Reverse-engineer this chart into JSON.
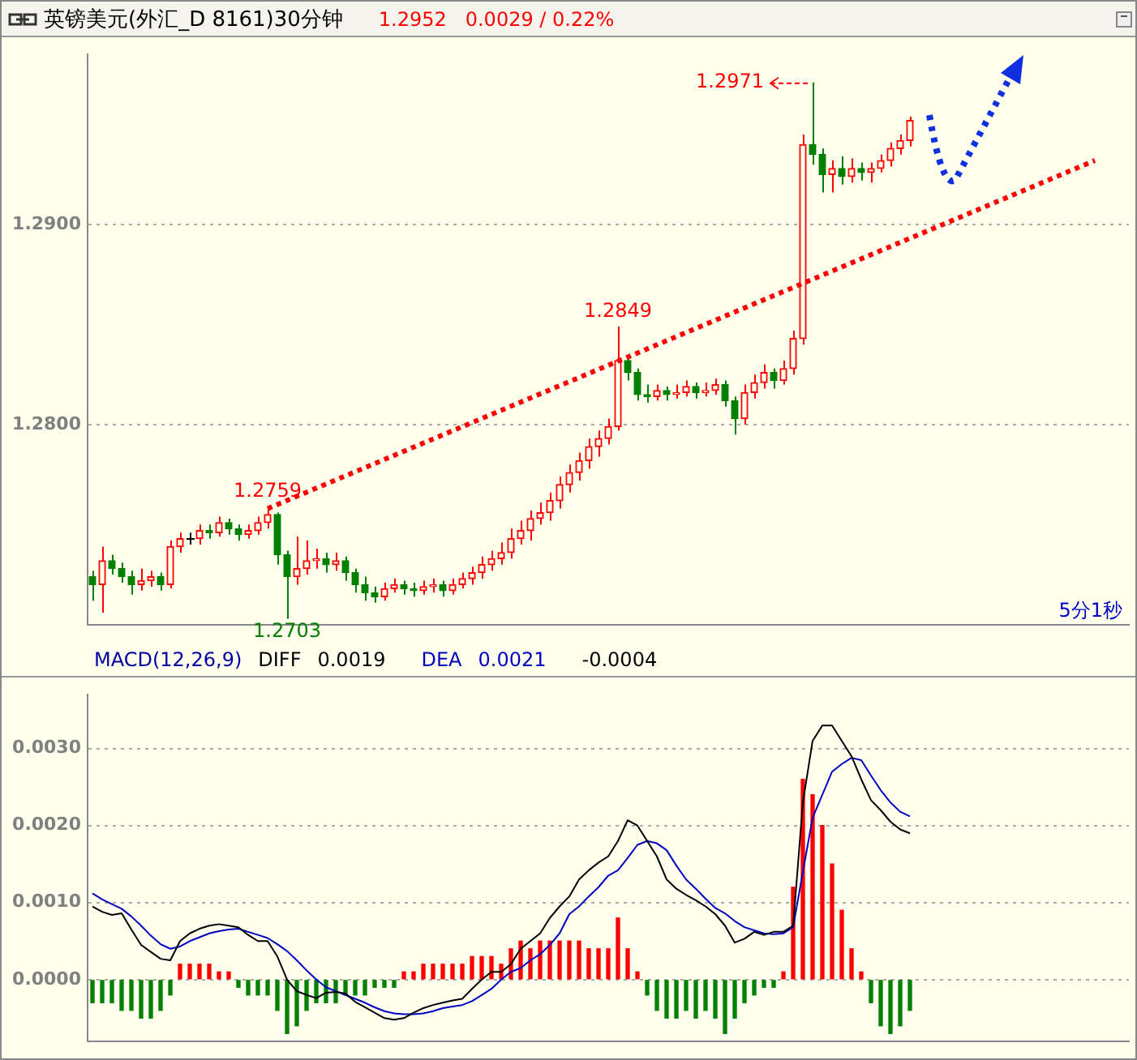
{
  "chart_data": [
    {
      "type": "candlestick",
      "title": "英镑美元(外汇_D 8161)30分钟",
      "subtitle": "1.2952   0.0029 / 0.22%",
      "categories": [
        null,
        null,
        null,
        null,
        null,
        null,
        null,
        null,
        null,
        null,
        null,
        null,
        null,
        null,
        null,
        null,
        null,
        null,
        null,
        null,
        null,
        null,
        null,
        null,
        null,
        null,
        null,
        null,
        null,
        null,
        null,
        null,
        null,
        null,
        null,
        null,
        null,
        null,
        null,
        null,
        null,
        null,
        null,
        null,
        null,
        null,
        null,
        null,
        null,
        null,
        null,
        null,
        null,
        null,
        null,
        null,
        null,
        null,
        null,
        null,
        null,
        null,
        null,
        null,
        null,
        null,
        null,
        null,
        null,
        null,
        null,
        null,
        null,
        null,
        null,
        null,
        null,
        null,
        null,
        null,
        null,
        null,
        null,
        null,
        null,
        null,
        null,
        null,
        null,
        null,
        null,
        null,
        null,
        null,
        null,
        null,
        null,
        null,
        null,
        null,
        null,
        null,
        null,
        null,
        null,
        null,
        null
      ],
      "ohlc": [
        [
          1.2724,
          1.2727,
          1.2712,
          1.272
        ],
        [
          1.272,
          1.2739,
          1.2706,
          1.2732
        ],
        [
          1.2732,
          1.2735,
          1.2725,
          1.2728
        ],
        [
          1.2728,
          1.2731,
          1.2721,
          1.2724
        ],
        [
          1.2724,
          1.2727,
          1.2715,
          1.272
        ],
        [
          1.272,
          1.2728,
          1.2717,
          1.2722
        ],
        [
          1.2722,
          1.2727,
          1.2719,
          1.2724
        ],
        [
          1.2724,
          1.2726,
          1.2717,
          1.272
        ],
        [
          1.272,
          1.2742,
          1.2718,
          1.2739
        ],
        [
          1.2739,
          1.2746,
          1.2736,
          1.2743
        ],
        [
          1.2743,
          1.2746,
          1.274,
          1.2743
        ],
        [
          1.2743,
          1.275,
          1.274,
          1.2747
        ],
        [
          1.2747,
          1.275,
          1.2743,
          1.2746
        ],
        [
          1.2746,
          1.2754,
          1.2744,
          1.2751
        ],
        [
          1.2751,
          1.2753,
          1.2745,
          1.2748
        ],
        [
          1.2748,
          1.275,
          1.2742,
          1.2745
        ],
        [
          1.2745,
          1.275,
          1.2743,
          1.2747
        ],
        [
          1.2747,
          1.2754,
          1.2745,
          1.2751
        ],
        [
          1.2751,
          1.2759,
          1.2748,
          1.2755
        ],
        [
          1.2755,
          1.2756,
          1.273,
          1.2735
        ],
        [
          1.2735,
          1.2737,
          1.2703,
          1.2724
        ],
        [
          1.2724,
          1.2744,
          1.272,
          1.2728
        ],
        [
          1.2728,
          1.2742,
          1.2725,
          1.2732
        ],
        [
          1.2732,
          1.2738,
          1.2728,
          1.2733
        ],
        [
          1.2733,
          1.2736,
          1.2726,
          1.273
        ],
        [
          1.273,
          1.2736,
          1.2727,
          1.2732
        ],
        [
          1.2732,
          1.2734,
          1.2722,
          1.2726
        ],
        [
          1.2726,
          1.2728,
          1.2716,
          1.272
        ],
        [
          1.272,
          1.2724,
          1.2712,
          1.2716
        ],
        [
          1.2716,
          1.2719,
          1.2711,
          1.2714
        ],
        [
          1.2714,
          1.2721,
          1.2712,
          1.2718
        ],
        [
          1.2718,
          1.2723,
          1.2716,
          1.272
        ],
        [
          1.272,
          1.2722,
          1.2715,
          1.2718
        ],
        [
          1.2718,
          1.2721,
          1.2714,
          1.2717
        ],
        [
          1.2717,
          1.2722,
          1.2715,
          1.2719
        ],
        [
          1.2719,
          1.2723,
          1.2716,
          1.272
        ],
        [
          1.272,
          1.2722,
          1.2714,
          1.2717
        ],
        [
          1.2717,
          1.2723,
          1.2715,
          1.272
        ],
        [
          1.272,
          1.2726,
          1.2718,
          1.2723
        ],
        [
          1.2723,
          1.2729,
          1.272,
          1.2726
        ],
        [
          1.2726,
          1.2734,
          1.2723,
          1.273
        ],
        [
          1.273,
          1.2737,
          1.2727,
          1.2733
        ],
        [
          1.2733,
          1.2741,
          1.273,
          1.2736
        ],
        [
          1.2736,
          1.2748,
          1.2733,
          1.2743
        ],
        [
          1.2743,
          1.2752,
          1.274,
          1.2747
        ],
        [
          1.2747,
          1.2757,
          1.2742,
          1.2753
        ],
        [
          1.2753,
          1.2761,
          1.275,
          1.2756
        ],
        [
          1.2756,
          1.2766,
          1.2752,
          1.2762
        ],
        [
          1.2762,
          1.2774,
          1.2758,
          1.277
        ],
        [
          1.277,
          1.278,
          1.2766,
          1.2776
        ],
        [
          1.2776,
          1.2786,
          1.2772,
          1.2782
        ],
        [
          1.2782,
          1.2793,
          1.2778,
          1.2789
        ],
        [
          1.2789,
          1.2797,
          1.2784,
          1.2793
        ],
        [
          1.2793,
          1.2803,
          1.279,
          1.2799
        ],
        [
          1.2799,
          1.2849,
          1.2797,
          1.2832
        ],
        [
          1.2832,
          1.2834,
          1.2822,
          1.2826
        ],
        [
          1.2826,
          1.2828,
          1.2812,
          1.2815
        ],
        [
          1.2815,
          1.282,
          1.2811,
          1.2814
        ],
        [
          1.2814,
          1.282,
          1.2812,
          1.2817
        ],
        [
          1.2817,
          1.2819,
          1.2812,
          1.2815
        ],
        [
          1.2815,
          1.282,
          1.2813,
          1.2816
        ],
        [
          1.2816,
          1.2822,
          1.2814,
          1.2819
        ],
        [
          1.2819,
          1.2821,
          1.2813,
          1.2816
        ],
        [
          1.2816,
          1.2821,
          1.2814,
          1.2817
        ],
        [
          1.2817,
          1.2823,
          1.2815,
          1.282
        ],
        [
          1.282,
          1.2822,
          1.2809,
          1.2812
        ],
        [
          1.2812,
          1.2814,
          1.2795,
          1.2803
        ],
        [
          1.2803,
          1.282,
          1.28,
          1.2816
        ],
        [
          1.2816,
          1.2825,
          1.2813,
          1.2821
        ],
        [
          1.2821,
          1.283,
          1.2818,
          1.2826
        ],
        [
          1.2826,
          1.2828,
          1.2818,
          1.2822
        ],
        [
          1.2822,
          1.2832,
          1.282,
          1.2828
        ],
        [
          1.2828,
          1.2847,
          1.2825,
          1.2843
        ],
        [
          1.2843,
          1.2945,
          1.284,
          1.294
        ],
        [
          1.294,
          1.2971,
          1.293,
          1.2935
        ],
        [
          1.2935,
          1.2938,
          1.2916,
          1.2925
        ],
        [
          1.2925,
          1.2932,
          1.2916,
          1.2928
        ],
        [
          1.2928,
          1.2934,
          1.292,
          1.2924
        ],
        [
          1.2924,
          1.2933,
          1.2921,
          1.2928
        ],
        [
          1.2928,
          1.2931,
          1.2922,
          1.2926
        ],
        [
          1.2926,
          1.2931,
          1.2921,
          1.2928
        ],
        [
          1.2928,
          1.2935,
          1.2926,
          1.2932
        ],
        [
          1.2932,
          1.2941,
          1.2929,
          1.2938
        ],
        [
          1.2938,
          1.2945,
          1.2935,
          1.2942
        ],
        [
          1.2942,
          1.2954,
          1.2939,
          1.2952
        ],
        null,
        null,
        null,
        null,
        null,
        null,
        null,
        null,
        null,
        null,
        null,
        null,
        null,
        null,
        null,
        null,
        null,
        null,
        null,
        null,
        null,
        null
      ],
      "colors": [
        "#008000",
        "#ff0000",
        "#008000",
        "#008000",
        "#008000",
        "#ff0000",
        "#ff0000",
        "#008000",
        "#ff0000",
        "#ff0000",
        "#000000",
        "#ff0000",
        "#008000",
        "#ff0000",
        "#008000",
        "#008000",
        "#ff0000",
        "#ff0000",
        "#ff0000",
        "#008000",
        "#008000",
        "#ff0000",
        "#ff0000",
        "#ff0000",
        "#008000",
        "#ff0000",
        "#008000",
        "#008000",
        "#008000",
        "#008000",
        "#ff0000",
        "#ff0000",
        "#008000",
        "#008000",
        "#ff0000",
        "#ff0000",
        "#008000",
        "#ff0000",
        "#ff0000",
        "#ff0000",
        "#ff0000",
        "#ff0000",
        "#ff0000",
        "#ff0000",
        "#ff0000",
        "#ff0000",
        "#ff0000",
        "#ff0000",
        "#ff0000",
        "#ff0000",
        "#ff0000",
        "#ff0000",
        "#ff0000",
        "#ff0000",
        "#ff0000",
        "#008000",
        "#008000",
        "#008000",
        "#ff0000",
        "#008000",
        "#ff0000",
        "#ff0000",
        "#008000",
        "#ff0000",
        "#ff0000",
        "#008000",
        "#008000",
        "#ff0000",
        "#ff0000",
        "#ff0000",
        "#008000",
        "#ff0000",
        "#ff0000",
        "#ff0000",
        "#008000",
        "#008000",
        "#ff0000",
        "#008000",
        "#ff0000",
        "#008000",
        "#ff0000",
        "#ff0000",
        "#ff0000",
        "#ff0000",
        "#ff0000",
        null,
        null,
        null,
        null,
        null,
        null,
        null,
        null,
        null,
        null,
        null,
        null,
        null,
        null,
        null,
        null,
        null,
        null,
        null,
        null,
        null,
        null
      ],
      "series": [
        {
          "type": "line",
          "values": [
            null,
            null,
            null,
            null,
            null,
            null,
            null,
            null,
            null,
            null,
            null,
            null,
            null,
            null,
            null,
            null,
            null,
            null,
            1.2758,
            null,
            null,
            null,
            null,
            null,
            null,
            null,
            null,
            null,
            null,
            null,
            null,
            null,
            null,
            null,
            null,
            null,
            null,
            null,
            null,
            null,
            null,
            null,
            null,
            null,
            null,
            null,
            null,
            null,
            null,
            null,
            null,
            null,
            null,
            null,
            null,
            null,
            null,
            null,
            null,
            null,
            null,
            null,
            null,
            null,
            null,
            null,
            null,
            null,
            null,
            null,
            null,
            null,
            null,
            null,
            null,
            null,
            null,
            null,
            null,
            null,
            null,
            null,
            null,
            null,
            null,
            null,
            null,
            null,
            null,
            null,
            null,
            null,
            null,
            null,
            null,
            null,
            null,
            null,
            null,
            null,
            null,
            null,
            null,
            1.2932,
            null,
            null,
            null
          ],
          "color": "#ff0000",
          "line_style": "dotted"
        }
      ],
      "ylim": [
        1.27,
        1.2985
      ],
      "yticks": [
        {
          "value": 1.28,
          "label": "1.2800"
        },
        {
          "value": 1.29,
          "label": "1.2900"
        }
      ],
      "grid": "y",
      "tick_labels": "y",
      "marker": "none",
      "annotations": [
        "1.2971",
        {
          "text": "1.2849",
          "y": 1.2849
        },
        {
          "text": "1.2759",
          "y": 1.2759
        },
        {
          "text": "1.2703",
          "y": 1.2703
        },
        "5分1秒"
      ]
    },
    {
      "type": "line",
      "title": "MACD(12,26,9)",
      "categories": [
        null,
        null,
        null,
        null,
        null,
        null,
        null,
        null,
        null,
        null,
        null,
        null,
        null,
        null,
        null,
        null,
        null,
        null,
        null,
        null,
        null,
        null,
        null,
        null,
        null,
        null,
        null,
        null,
        null,
        null,
        null,
        null,
        null,
        null,
        null,
        null,
        null,
        null,
        null,
        null,
        null,
        null,
        null,
        null,
        null,
        null,
        null,
        null,
        null,
        null,
        null,
        null,
        null,
        null,
        null,
        null,
        null,
        null,
        null,
        null,
        null,
        null,
        null,
        null,
        null,
        null,
        null,
        null,
        null,
        null,
        null,
        null,
        null,
        null,
        null,
        null,
        null,
        null,
        null,
        null,
        null,
        null,
        null,
        null,
        null,
        null,
        null,
        null,
        null,
        null,
        null,
        null,
        null,
        null,
        null,
        null,
        null,
        null,
        null,
        null,
        null,
        null,
        null,
        null,
        null,
        null,
        null
      ],
      "series": [
        {
          "name": "DIFF",
          "color": "#000000",
          "values": [
            0.00095,
            0.00088,
            0.00084,
            0.00086,
            0.00065,
            0.00045,
            0.00036,
            0.00027,
            0.00025,
            0.0005,
            0.0006,
            0.00066,
            0.0007,
            0.00072,
            0.0007,
            0.00068,
            0.00058,
            0.0005,
            0.0005,
            0.0003,
            0.0,
            -0.00015,
            -0.0002,
            -0.00024,
            -0.00017,
            -0.00016,
            -0.00018,
            -0.00029,
            -0.00036,
            -0.00043,
            -0.0005,
            -0.00052,
            -0.0005,
            -0.00043,
            -0.00037,
            -0.00033,
            -0.0003,
            -0.00027,
            -0.00025,
            -0.00012,
            0.0,
            0.0001,
            0.0001,
            0.0002,
            0.0004,
            0.0005,
            0.0006,
            0.0008,
            0.00095,
            0.00108,
            0.0013,
            0.00142,
            0.00152,
            0.0016,
            0.0018,
            0.00207,
            0.002,
            0.0018,
            0.0016,
            0.0013,
            0.00118,
            0.0011,
            0.00103,
            0.00095,
            0.00085,
            0.0007,
            0.00048,
            0.00053,
            0.00062,
            0.00058,
            0.00062,
            0.00062,
            0.0007,
            0.0023,
            0.0031,
            0.0033,
            0.0033,
            0.0031,
            0.0029,
            0.0026,
            0.00233,
            0.0022,
            0.00205,
            0.00195,
            0.0019,
            null,
            null,
            null,
            null,
            null,
            null,
            null,
            null,
            null,
            null,
            null,
            null,
            null,
            null,
            null,
            null,
            null,
            null,
            null,
            null,
            null,
            null
          ]
        },
        {
          "name": "DEA",
          "color": "#0000c0",
          "values": [
            0.00112,
            0.00104,
            0.00098,
            0.00092,
            0.00082,
            0.0007,
            0.00057,
            0.00046,
            0.0004,
            0.00043,
            0.0005,
            0.00055,
            0.0006,
            0.00063,
            0.00065,
            0.00066,
            0.00062,
            0.00058,
            0.00054,
            0.00046,
            0.00037,
            0.00025,
            0.00012,
            0.0,
            -0.0001,
            -0.00015,
            -0.0002,
            -0.00025,
            -0.0003,
            -0.00036,
            -0.00041,
            -0.00044,
            -0.00045,
            -0.00045,
            -0.00044,
            -0.00041,
            -0.00037,
            -0.00035,
            -0.00033,
            -0.00028,
            -0.0002,
            -0.00012,
            0.0,
            0.0001,
            0.00015,
            0.00025,
            0.00033,
            0.00045,
            0.0006,
            0.00085,
            0.00095,
            0.00108,
            0.0012,
            0.00135,
            0.00142,
            0.00158,
            0.00175,
            0.0018,
            0.00177,
            0.00168,
            0.00148,
            0.0013,
            0.00118,
            0.00105,
            0.00093,
            0.00086,
            0.00076,
            0.00068,
            0.00064,
            0.0006,
            0.00059,
            0.0006,
            0.00068,
            0.0014,
            0.0021,
            0.0024,
            0.0027,
            0.0028,
            0.00288,
            0.00285,
            0.00265,
            0.00246,
            0.0023,
            0.00218,
            0.00212,
            null,
            null,
            null,
            null,
            null,
            null,
            null,
            null,
            null,
            null,
            null,
            null,
            null,
            null,
            null,
            null,
            null,
            null,
            null,
            null,
            null,
            null
          ]
        },
        {
          "type": "bar",
          "values": [
            -0.0003,
            -0.0003,
            -0.0003,
            -0.0004,
            -0.0004,
            -0.0005,
            -0.0005,
            -0.0004,
            -0.0002,
            0.0002,
            0.0002,
            0.0002,
            0.0002,
            0.0001,
            0.0001,
            -0.0001,
            -0.0002,
            -0.0002,
            -0.0002,
            -0.0004,
            -0.0007,
            -0.0006,
            -0.0004,
            -0.0003,
            -0.0003,
            -0.0003,
            -0.0002,
            -0.0002,
            -0.0002,
            -0.0001,
            -0.0001,
            -0.0001,
            0.0001,
            0.0001,
            0.0002,
            0.0002,
            0.0002,
            0.0002,
            0.0002,
            0.0003,
            0.0003,
            0.0003,
            0.0002,
            0.0004,
            0.0005,
            0.0004,
            0.0005,
            0.0005,
            0.0005,
            0.0005,
            0.0005,
            0.0004,
            0.0004,
            0.0004,
            0.0008,
            0.0004,
            0.0001,
            -0.0002,
            -0.0004,
            -0.0005,
            -0.0005,
            -0.0004,
            -0.0005,
            -0.0004,
            -0.0005,
            -0.0007,
            -0.0005,
            -0.0003,
            -0.0002,
            -0.0001,
            -0.0001,
            0.0001,
            0.0012,
            0.0026,
            0.0024,
            0.002,
            0.0015,
            0.0009,
            0.0004,
            0.0001,
            -0.0003,
            -0.0006,
            -0.0007,
            -0.0006,
            -0.0004,
            null,
            null,
            null,
            null,
            null,
            null,
            null,
            null,
            null,
            null,
            null,
            null,
            null,
            null,
            null,
            null,
            null,
            null,
            null,
            null,
            null,
            null
          ],
          "colors": [
            "#008000",
            "#008000",
            "#008000",
            "#008000",
            "#008000",
            "#008000",
            "#008000",
            "#008000",
            "#008000",
            "#ff0000",
            "#ff0000",
            "#ff0000",
            "#ff0000",
            "#ff0000",
            "#ff0000",
            "#008000",
            "#008000",
            "#008000",
            "#008000",
            "#008000",
            "#008000",
            "#008000",
            "#008000",
            "#008000",
            "#008000",
            "#008000",
            "#008000",
            "#008000",
            "#008000",
            "#008000",
            "#008000",
            "#008000",
            "#ff0000",
            "#ff0000",
            "#ff0000",
            "#ff0000",
            "#ff0000",
            "#ff0000",
            "#ff0000",
            "#ff0000",
            "#ff0000",
            "#ff0000",
            "#ff0000",
            "#ff0000",
            "#ff0000",
            "#ff0000",
            "#ff0000",
            "#ff0000",
            "#ff0000",
            "#ff0000",
            "#ff0000",
            "#ff0000",
            "#ff0000",
            "#ff0000",
            "#ff0000",
            "#ff0000",
            "#ff0000",
            "#008000",
            "#008000",
            "#008000",
            "#008000",
            "#008000",
            "#008000",
            "#008000",
            "#008000",
            "#008000",
            "#008000",
            "#008000",
            "#008000",
            "#008000",
            "#008000",
            "#ff0000",
            "#ff0000",
            "#ff0000",
            "#ff0000",
            "#ff0000",
            "#ff0000",
            "#ff0000",
            "#ff0000",
            "#ff0000",
            "#008000",
            "#008000",
            "#008000",
            "#008000",
            "#008000",
            null,
            null,
            null,
            null,
            null,
            null,
            null,
            null,
            null,
            null,
            null,
            null,
            null,
            null,
            null,
            null,
            null,
            null,
            null,
            null,
            null,
            null
          ]
        }
      ],
      "ylim": [
        -0.0008,
        0.0037
      ],
      "yticks": [
        {
          "value": 0,
          "label": "0.0000"
        },
        {
          "value": 0.001,
          "label": "0.0010"
        },
        {
          "value": 0.002,
          "label": "0.0020"
        },
        {
          "value": 0.003,
          "label": "0.0030"
        }
      ],
      "grid": "y",
      "tick_labels": "y",
      "marker": "none",
      "line_style": "solid",
      "annotations": [
        "0.0019",
        "0.0021",
        "-0.0004"
      ]
    }
  ]
}
